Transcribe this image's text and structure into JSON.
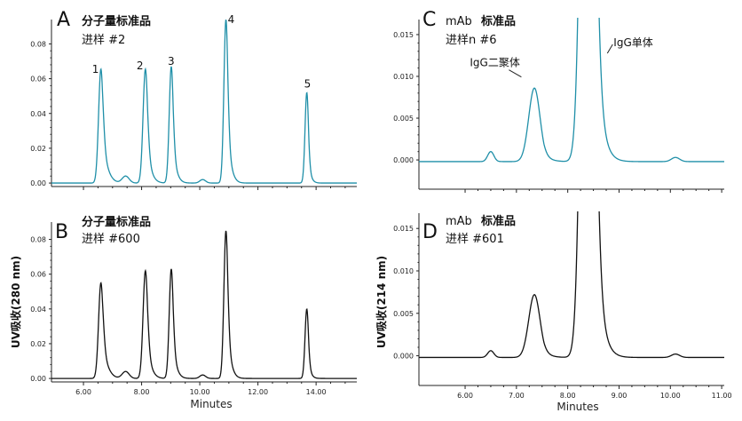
{
  "ylabel_left": "UV吸收(280 nm)",
  "ylabel_right": "UV吸收(214 nm)",
  "chart_data": [
    {
      "id": "A",
      "type": "line",
      "letter": "A",
      "title": "分子量标准品",
      "subtitle": "进样 #2",
      "color": "#1f8fa8",
      "xlim": [
        4.9,
        15.4
      ],
      "ylim": [
        -0.002,
        0.094
      ],
      "xticks": [],
      "xtick_labels": [],
      "yticks": [
        0,
        0.02,
        0.04,
        0.06,
        0.08
      ],
      "ytick_labels": [
        "0.00",
        "0.02",
        "0.04",
        "0.06",
        "0.08"
      ],
      "xlabel": "",
      "baseline": 0.0,
      "peaks": [
        {
          "x": 6.6,
          "y": 0.0655,
          "w": 0.08,
          "tail": 0.26,
          "label": "1"
        },
        {
          "x": 8.13,
          "y": 0.0655,
          "w": 0.08,
          "tail": 0.18,
          "label": "2"
        },
        {
          "x": 9.02,
          "y": 0.067,
          "w": 0.07,
          "tail": 0.16,
          "label": "3"
        },
        {
          "x": 10.9,
          "y": 0.094,
          "w": 0.07,
          "tail": 0.16,
          "label": "4"
        },
        {
          "x": 13.68,
          "y": 0.052,
          "w": 0.06,
          "tail": 0.1,
          "label": "5"
        },
        {
          "x": 7.45,
          "y": 0.004,
          "w": 0.12,
          "tail": 0.05,
          "label": ""
        },
        {
          "x": 10.1,
          "y": 0.002,
          "w": 0.1,
          "tail": 0.05,
          "label": ""
        }
      ]
    },
    {
      "id": "B",
      "type": "line",
      "letter": "B",
      "title": "分子量标准品",
      "subtitle": "进样 #600",
      "color": "#111111",
      "xlim": [
        4.9,
        15.4
      ],
      "ylim": [
        -0.002,
        0.09
      ],
      "xticks": [
        6,
        8,
        10,
        12,
        14
      ],
      "xtick_labels": [
        "6.00",
        "8.00",
        "10.00",
        "12.00",
        "14.00"
      ],
      "yticks": [
        0,
        0.02,
        0.04,
        0.06,
        0.08
      ],
      "ytick_labels": [
        "0.00",
        "0.02",
        "0.04",
        "0.06",
        "0.08"
      ],
      "xlabel": "Minutes",
      "baseline": 0.0,
      "peaks": [
        {
          "x": 6.6,
          "y": 0.055,
          "w": 0.08,
          "tail": 0.26,
          "label": ""
        },
        {
          "x": 8.13,
          "y": 0.062,
          "w": 0.08,
          "tail": 0.18,
          "label": ""
        },
        {
          "x": 9.02,
          "y": 0.063,
          "w": 0.07,
          "tail": 0.16,
          "label": ""
        },
        {
          "x": 10.9,
          "y": 0.085,
          "w": 0.07,
          "tail": 0.16,
          "label": ""
        },
        {
          "x": 13.68,
          "y": 0.04,
          "w": 0.06,
          "tail": 0.1,
          "label": ""
        },
        {
          "x": 7.45,
          "y": 0.004,
          "w": 0.12,
          "tail": 0.05,
          "label": ""
        },
        {
          "x": 10.1,
          "y": 0.002,
          "w": 0.1,
          "tail": 0.05,
          "label": ""
        }
      ]
    },
    {
      "id": "C",
      "type": "line",
      "letter": "C",
      "title_prefix": "mAb",
      "title": "标准品",
      "subtitle": "进样n #6",
      "color": "#1f8fa8",
      "xlim": [
        5.1,
        11.05
      ],
      "ylim": [
        -0.0035,
        0.0168
      ],
      "xticks": [],
      "xtick_labels": [],
      "yticks": [
        0,
        0.005,
        0.01,
        0.015
      ],
      "ytick_labels": [
        "0.000",
        "0.005",
        "0.010",
        "0.015"
      ],
      "xlabel": "",
      "baseline": -0.0002,
      "peaks": [
        {
          "x": 7.35,
          "y": 0.0088,
          "w": 0.11,
          "tail": 0.14,
          "label": ""
        },
        {
          "x": 8.4,
          "y": 0.1,
          "w": 0.11,
          "tail": 0.14,
          "label": ""
        },
        {
          "x": 6.5,
          "y": 0.0012,
          "w": 0.06,
          "tail": 0.05,
          "label": ""
        },
        {
          "x": 10.1,
          "y": 0.0005,
          "w": 0.08,
          "tail": 0.05,
          "label": ""
        }
      ],
      "annotations": [
        {
          "text": "IgG二聚体",
          "x": 6.75,
          "y": 0.0112
        },
        {
          "text": "IgG单体",
          "x": 8.72,
          "y": 0.0168
        }
      ]
    },
    {
      "id": "D",
      "type": "line",
      "letter": "D",
      "title_prefix": "mAb",
      "title": "标准品",
      "subtitle": "进样 #601",
      "color": "#111111",
      "xlim": [
        5.1,
        11.05
      ],
      "ylim": [
        -0.0035,
        0.0168
      ],
      "xticks": [
        6,
        7,
        8,
        9,
        10,
        11
      ],
      "xtick_labels": [
        "6.00",
        "7.00",
        "8.00",
        "9.00",
        "10.00",
        "11.00"
      ],
      "yticks": [
        0,
        0.005,
        0.01,
        0.015
      ],
      "ytick_labels": [
        "0.000",
        "0.005",
        "0.010",
        "0.015"
      ],
      "xlabel": "Minutes",
      "baseline": -0.0002,
      "peaks": [
        {
          "x": 7.35,
          "y": 0.0074,
          "w": 0.11,
          "tail": 0.14,
          "label": ""
        },
        {
          "x": 8.4,
          "y": 0.1,
          "w": 0.11,
          "tail": 0.14,
          "label": ""
        },
        {
          "x": 6.5,
          "y": 0.0008,
          "w": 0.06,
          "tail": 0.05,
          "label": ""
        },
        {
          "x": 10.1,
          "y": 0.0004,
          "w": 0.08,
          "tail": 0.05,
          "label": ""
        }
      ]
    }
  ]
}
